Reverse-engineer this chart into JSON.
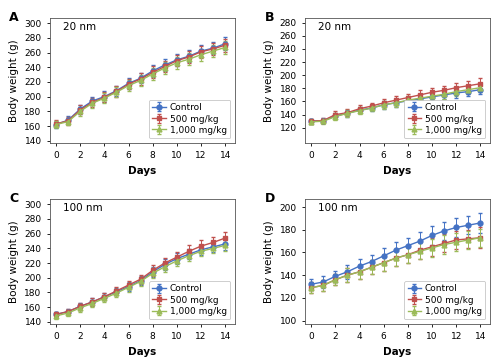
{
  "panels": [
    {
      "label": "A",
      "title": "20 nm",
      "ylabel": "Body weight (g)",
      "xlabel": "Days",
      "ylim": [
        137,
        307
      ],
      "yticks": [
        140,
        160,
        180,
        200,
        220,
        240,
        260,
        280,
        300
      ],
      "days": [
        0,
        1,
        2,
        3,
        4,
        5,
        6,
        7,
        8,
        9,
        10,
        11,
        12,
        13,
        14
      ],
      "series": [
        {
          "label": "Control",
          "color": "#4472c4",
          "marker": "o",
          "mean": [
            162,
            168,
            183,
            194,
            200,
            208,
            218,
            225,
            235,
            243,
            250,
            255,
            262,
            266,
            272
          ],
          "err": [
            5,
            5,
            6,
            6,
            7,
            7,
            7,
            7,
            8,
            8,
            8,
            8,
            8,
            8,
            9
          ]
        },
        {
          "label": "500 mg/kg",
          "color": "#c0504d",
          "marker": "s",
          "mean": [
            163,
            167,
            182,
            192,
            199,
            207,
            217,
            224,
            233,
            241,
            249,
            254,
            261,
            265,
            270
          ],
          "err": [
            5,
            5,
            6,
            6,
            7,
            7,
            7,
            8,
            8,
            8,
            8,
            8,
            8,
            8,
            9
          ]
        },
        {
          "label": "1,000 mg/kg",
          "color": "#9bbb59",
          "marker": "^",
          "mean": [
            162,
            166,
            180,
            191,
            198,
            206,
            215,
            222,
            231,
            239,
            246,
            251,
            257,
            262,
            267
          ],
          "err": [
            5,
            5,
            6,
            6,
            7,
            7,
            7,
            7,
            8,
            8,
            8,
            8,
            8,
            8,
            9
          ]
        }
      ]
    },
    {
      "label": "B",
      "title": "20 nm",
      "ylabel": "Body weight (g)",
      "xlabel": "Days",
      "ylim": [
        97,
        287
      ],
      "yticks": [
        120,
        140,
        160,
        180,
        200,
        220,
        240,
        260,
        280
      ],
      "days": [
        0,
        1,
        2,
        3,
        4,
        5,
        6,
        7,
        8,
        9,
        10,
        11,
        12,
        13,
        14
      ],
      "series": [
        {
          "label": "Control",
          "color": "#4472c4",
          "marker": "o",
          "mean": [
            130,
            131,
            138,
            142,
            147,
            150,
            155,
            158,
            161,
            164,
            167,
            170,
            173,
            175,
            178
          ],
          "err": [
            4,
            4,
            5,
            5,
            5,
            5,
            6,
            6,
            6,
            6,
            6,
            6,
            7,
            7,
            7
          ]
        },
        {
          "label": "500 mg/kg",
          "color": "#c0504d",
          "marker": "s",
          "mean": [
            130,
            131,
            140,
            143,
            149,
            153,
            158,
            162,
            166,
            170,
            174,
            177,
            181,
            184,
            187
          ],
          "err": [
            4,
            4,
            5,
            5,
            5,
            5,
            6,
            6,
            6,
            7,
            7,
            7,
            7,
            7,
            8
          ]
        },
        {
          "label": "1,000 mg/kg",
          "color": "#9bbb59",
          "marker": "^",
          "mean": [
            129,
            130,
            137,
            142,
            146,
            150,
            155,
            158,
            162,
            165,
            168,
            171,
            175,
            178,
            181
          ],
          "err": [
            4,
            4,
            5,
            5,
            5,
            5,
            6,
            6,
            6,
            6,
            6,
            7,
            7,
            7,
            7
          ]
        }
      ]
    },
    {
      "label": "C",
      "title": "100 nm",
      "ylabel": "Body weight (g)",
      "xlabel": "Days",
      "ylim": [
        137,
        307
      ],
      "yticks": [
        140,
        160,
        180,
        200,
        220,
        240,
        260,
        280,
        300
      ],
      "days": [
        0,
        1,
        2,
        3,
        4,
        5,
        6,
        7,
        8,
        9,
        10,
        11,
        12,
        13,
        14
      ],
      "series": [
        {
          "label": "Control",
          "color": "#4472c4",
          "marker": "o",
          "mean": [
            150,
            154,
            161,
            167,
            174,
            181,
            188,
            196,
            208,
            218,
            226,
            232,
            238,
            242,
            246
          ],
          "err": [
            4,
            4,
            5,
            5,
            5,
            5,
            6,
            6,
            7,
            7,
            7,
            7,
            7,
            7,
            8
          ]
        },
        {
          "label": "500 mg/kg",
          "color": "#c0504d",
          "marker": "s",
          "mean": [
            150,
            154,
            161,
            167,
            174,
            182,
            190,
            198,
            210,
            220,
            228,
            236,
            243,
            248,
            254
          ],
          "err": [
            4,
            4,
            5,
            5,
            5,
            5,
            6,
            6,
            7,
            7,
            7,
            8,
            8,
            8,
            8
          ]
        },
        {
          "label": "1,000 mg/kg",
          "color": "#9bbb59",
          "marker": "^",
          "mean": [
            148,
            152,
            159,
            165,
            172,
            179,
            187,
            195,
            206,
            215,
            223,
            230,
            236,
            240,
            244
          ],
          "err": [
            4,
            4,
            5,
            5,
            5,
            5,
            6,
            6,
            7,
            7,
            7,
            7,
            7,
            7,
            8
          ]
        }
      ]
    },
    {
      "label": "D",
      "title": "100 nm",
      "ylabel": "Body weight (g)",
      "xlabel": "Days",
      "ylim": [
        97,
        207
      ],
      "yticks": [
        100,
        120,
        140,
        160,
        180,
        200
      ],
      "days": [
        0,
        1,
        2,
        3,
        4,
        5,
        6,
        7,
        8,
        9,
        10,
        11,
        12,
        13,
        14
      ],
      "series": [
        {
          "label": "Control",
          "color": "#4472c4",
          "marker": "o",
          "mean": [
            132,
            134,
            139,
            143,
            148,
            152,
            157,
            162,
            166,
            170,
            175,
            179,
            182,
            184,
            186
          ],
          "err": [
            5,
            5,
            5,
            6,
            6,
            6,
            7,
            7,
            7,
            8,
            8,
            8,
            8,
            8,
            9
          ]
        },
        {
          "label": "500 mg/kg",
          "color": "#c0504d",
          "marker": "s",
          "mean": [
            129,
            131,
            136,
            140,
            143,
            147,
            151,
            155,
            158,
            162,
            165,
            168,
            171,
            172,
            173
          ],
          "err": [
            5,
            5,
            5,
            6,
            6,
            6,
            7,
            7,
            7,
            8,
            8,
            8,
            8,
            8,
            9
          ]
        },
        {
          "label": "1,000 mg/kg",
          "color": "#9bbb59",
          "marker": "^",
          "mean": [
            129,
            131,
            136,
            140,
            143,
            147,
            151,
            155,
            158,
            161,
            164,
            167,
            169,
            171,
            173
          ],
          "err": [
            5,
            5,
            5,
            6,
            6,
            6,
            7,
            7,
            7,
            7,
            8,
            8,
            8,
            8,
            8
          ]
        }
      ]
    }
  ],
  "background_color": "#ffffff",
  "label_fontsize": 7.5,
  "title_fontsize": 7.5,
  "tick_fontsize": 6.5,
  "legend_fontsize": 6.5,
  "marker_size": 3.5,
  "linewidth": 1.0,
  "capsize": 1.5,
  "elinewidth": 0.7
}
